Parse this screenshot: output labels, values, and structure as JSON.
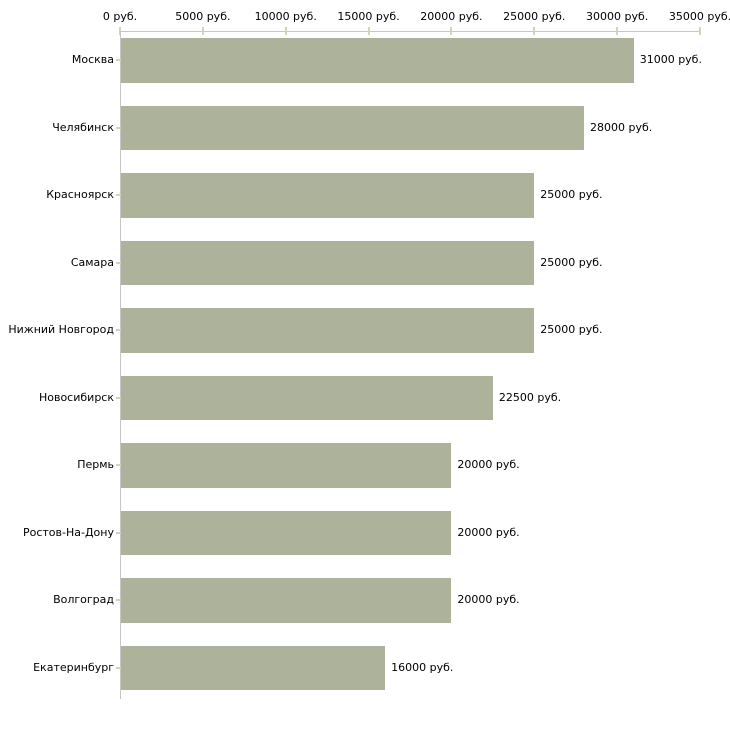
{
  "chart_data": {
    "type": "bar",
    "orientation": "horizontal",
    "title": "",
    "xlabel": "",
    "ylabel": "",
    "unit": "руб.",
    "categories": [
      "Москва",
      "Челябинск",
      "Красноярск",
      "Самара",
      "Нижний Новгород",
      "Новосибирск",
      "Пермь",
      "Ростов-На-Дону",
      "Волгоград",
      "Екатеринбург"
    ],
    "values": [
      31000,
      28000,
      25000,
      25000,
      25000,
      22500,
      20000,
      20000,
      20000,
      16000
    ],
    "value_labels": [
      "31000 руб.",
      "28000 руб.",
      "25000 руб.",
      "25000 руб.",
      "25000 руб.",
      "22500 руб.",
      "20000 руб.",
      "20000 руб.",
      "20000 руб.",
      "16000 руб."
    ],
    "xlim": [
      0,
      35000
    ],
    "x_ticks": [
      0,
      5000,
      10000,
      15000,
      20000,
      25000,
      30000,
      35000
    ],
    "x_tick_labels": [
      "0 руб.",
      "5000 руб.",
      "10000 руб.",
      "15000 руб.",
      "20000 руб.",
      "25000 руб.",
      "30000 руб.",
      "35000 руб."
    ],
    "axis_position": "top",
    "grid": false,
    "legend": false,
    "colors": {
      "bar": "#adb39a",
      "axis_line": "#c6c6c6",
      "tick_mark": "#d3d5ba",
      "text": "#000000",
      "background": "#ffffff"
    }
  }
}
